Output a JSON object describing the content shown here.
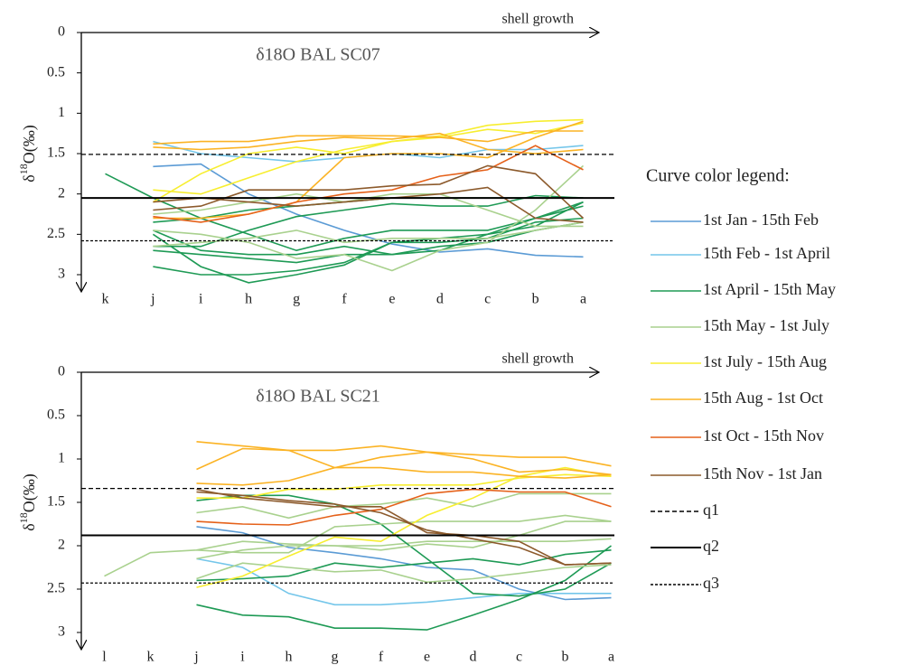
{
  "legend": {
    "title": "Curve color legend:",
    "items": [
      {
        "name": "1st Jan - 15th Feb",
        "color": "#5b9bd5",
        "style": "solid"
      },
      {
        "name": "15th Feb - 1st April",
        "color": "#74c6ea",
        "style": "solid"
      },
      {
        "name": "1st April - 15th May",
        "color": "#1e9a55",
        "style": "solid"
      },
      {
        "name": "15th May - 1st July",
        "color": "#a9d18e",
        "style": "solid"
      },
      {
        "name": "1st July - 15th Aug",
        "color": "#f7ee30",
        "style": "solid"
      },
      {
        "name": "15th Aug - 1st Oct",
        "color": "#fbb324",
        "style": "solid"
      },
      {
        "name": "1st Oct - 15th Nov",
        "color": "#e5611a",
        "style": "solid"
      },
      {
        "name": "15th Nov - 1st Jan",
        "color": "#8c5a2c",
        "style": "solid"
      },
      {
        "name": "q1",
        "color": "#000000",
        "style": "dashed"
      },
      {
        "name": "q2",
        "color": "#000000",
        "style": "solid"
      },
      {
        "name": "q3",
        "color": "#000000",
        "style": "dotted"
      }
    ]
  },
  "chart_data": [
    {
      "type": "line",
      "title": "δ18O BAL SC07",
      "annotation": "shell growth",
      "y_label": {
        "prefix": "δ",
        "sup": "18",
        "suffix": "O(‰)"
      },
      "categories": [
        "k",
        "j",
        "i",
        "h",
        "g",
        "f",
        "e",
        "d",
        "c",
        "b",
        "a"
      ],
      "ylim": [
        0,
        3
      ],
      "yticks": [
        0,
        0.5,
        1,
        1.5,
        2,
        2.5,
        3
      ],
      "y_inverted": true,
      "q_lines": [
        1.51,
        2.05,
        2.58
      ],
      "series": [
        {
          "color": "#5b9bd5",
          "values": [
            null,
            1.66,
            1.63,
            2.0,
            2.25,
            2.45,
            2.62,
            2.72,
            2.68,
            2.76,
            2.78
          ]
        },
        {
          "color": "#74c6ea",
          "values": [
            null,
            1.35,
            1.5,
            1.55,
            1.6,
            1.55,
            1.5,
            1.55,
            1.45,
            1.45,
            1.4
          ]
        },
        {
          "color": "#1e9a55",
          "values": [
            1.75,
            2.05,
            2.3,
            2.5,
            2.7,
            2.55,
            2.45,
            2.45,
            2.45,
            2.3,
            2.1
          ]
        },
        {
          "color": "#1e9a55",
          "values": [
            null,
            2.45,
            2.7,
            2.75,
            2.75,
            2.65,
            2.75,
            2.65,
            2.6,
            2.45,
            2.35
          ]
        },
        {
          "color": "#1e9a55",
          "values": [
            null,
            2.9,
            3.0,
            3.0,
            2.95,
            2.85,
            2.6,
            2.6,
            2.55,
            2.35,
            2.3
          ]
        },
        {
          "color": "#1e9a55",
          "values": [
            null,
            2.5,
            2.9,
            3.1,
            3.0,
            2.88,
            2.6,
            2.55,
            2.5,
            2.4,
            2.1
          ]
        },
        {
          "color": "#1e9a55",
          "values": [
            null,
            2.35,
            2.3,
            2.2,
            2.15,
            2.1,
            2.05,
            2.05,
            2.05,
            2.05,
            2.05
          ]
        },
        {
          "color": "#1e9a55",
          "values": [
            null,
            2.65,
            2.65,
            2.45,
            2.28,
            2.2,
            2.12,
            2.15,
            2.15,
            2.02,
            2.05
          ]
        },
        {
          "color": "#1e9a55",
          "values": [
            null,
            2.7,
            2.75,
            2.8,
            2.85,
            2.75,
            2.75,
            2.7,
            2.5,
            2.3,
            2.15
          ]
        },
        {
          "color": "#a9d18e",
          "values": [
            null,
            2.25,
            2.2,
            2.1,
            2.0,
            2.1,
            2.0,
            2.0,
            2.2,
            2.4,
            2.4
          ]
        },
        {
          "color": "#a9d18e",
          "values": [
            null,
            2.45,
            2.5,
            2.6,
            2.8,
            2.75,
            2.95,
            2.7,
            2.6,
            2.2,
            1.65
          ]
        },
        {
          "color": "#a9d18e",
          "values": [
            null,
            2.65,
            2.6,
            2.55,
            2.45,
            2.6,
            2.55,
            2.55,
            2.55,
            2.45,
            2.35
          ]
        },
        {
          "color": "#f7ee30",
          "values": [
            null,
            1.95,
            2.0,
            1.8,
            1.6,
            1.45,
            1.35,
            1.28,
            1.15,
            1.1,
            1.08
          ]
        },
        {
          "color": "#f7ee30",
          "values": [
            null,
            2.1,
            1.75,
            1.5,
            1.42,
            1.5,
            1.35,
            1.3,
            1.2,
            1.25,
            1.12
          ]
        },
        {
          "color": "#fbb324",
          "values": [
            null,
            1.38,
            1.35,
            1.35,
            1.28,
            1.28,
            1.28,
            1.3,
            1.35,
            1.22,
            1.22
          ]
        },
        {
          "color": "#fbb324",
          "values": [
            null,
            1.42,
            1.45,
            1.42,
            1.35,
            1.3,
            1.32,
            1.25,
            1.45,
            1.5,
            1.45
          ]
        },
        {
          "color": "#fbb324",
          "values": [
            null,
            2.3,
            2.3,
            2.25,
            2.1,
            1.55,
            1.5,
            1.5,
            1.55,
            1.3,
            1.1
          ]
        },
        {
          "color": "#e5611a",
          "values": [
            null,
            2.28,
            2.35,
            2.25,
            2.1,
            2.0,
            1.95,
            1.78,
            1.7,
            1.4,
            1.7
          ]
        },
        {
          "color": "#8c5a2c",
          "values": [
            null,
            2.2,
            2.15,
            1.95,
            1.95,
            1.95,
            1.9,
            1.88,
            1.65,
            1.75,
            2.3
          ]
        },
        {
          "color": "#8c5a2c",
          "values": [
            null,
            2.1,
            2.05,
            2.1,
            2.15,
            2.1,
            2.05,
            2.0,
            1.92,
            2.3,
            2.35
          ]
        }
      ]
    },
    {
      "type": "line",
      "title": "δ18O BAL SC21",
      "annotation": "shell growth",
      "y_label": {
        "prefix": "δ",
        "sup": "18",
        "suffix": "O(‰)"
      },
      "categories": [
        "l",
        "k",
        "j",
        "i",
        "h",
        "g",
        "f",
        "e",
        "d",
        "c",
        "b",
        "a"
      ],
      "ylim": [
        0,
        3
      ],
      "yticks": [
        0,
        0.5,
        1,
        1.5,
        2,
        2.5,
        3
      ],
      "y_inverted": true,
      "q_lines": [
        1.34,
        1.88,
        2.43
      ],
      "series": [
        {
          "color": "#a9d18e",
          "values": [
            2.35,
            2.08,
            2.05,
            1.95,
            1.98,
            2.0,
            2.0,
            1.95,
            1.95,
            1.95,
            1.95,
            1.92
          ]
        },
        {
          "color": "#5b9bd5",
          "values": [
            null,
            null,
            1.78,
            1.85,
            2.02,
            2.08,
            2.15,
            2.25,
            2.28,
            2.5,
            2.62,
            2.6
          ]
        },
        {
          "color": "#74c6ea",
          "values": [
            null,
            null,
            2.15,
            2.25,
            2.55,
            2.68,
            2.68,
            2.65,
            2.6,
            2.55,
            2.55,
            2.55
          ]
        },
        {
          "color": "#1e9a55",
          "values": [
            null,
            null,
            2.68,
            2.8,
            2.82,
            2.95,
            2.95,
            2.97,
            2.8,
            2.62,
            2.4,
            2.0
          ]
        },
        {
          "color": "#1e9a55",
          "values": [
            null,
            null,
            2.4,
            2.38,
            2.35,
            2.2,
            2.25,
            2.2,
            2.15,
            2.22,
            2.1,
            2.05
          ]
        },
        {
          "color": "#1e9a55",
          "values": [
            null,
            null,
            1.48,
            1.42,
            1.42,
            1.52,
            1.75,
            2.15,
            2.55,
            2.58,
            2.5,
            2.2
          ]
        },
        {
          "color": "#a9d18e",
          "values": [
            null,
            null,
            1.62,
            1.55,
            1.68,
            1.55,
            1.52,
            1.45,
            1.55,
            1.4,
            1.4,
            1.4
          ]
        },
        {
          "color": "#a9d18e",
          "values": [
            null,
            null,
            2.38,
            2.2,
            2.25,
            2.3,
            2.28,
            2.42,
            2.38,
            2.32,
            2.25,
            2.22
          ]
        },
        {
          "color": "#a9d18e",
          "values": [
            null,
            null,
            2.05,
            2.08,
            2.08,
            1.78,
            1.75,
            1.72,
            1.72,
            1.72,
            1.65,
            1.72
          ]
        },
        {
          "color": "#a9d18e",
          "values": [
            null,
            null,
            2.15,
            2.05,
            2.0,
            2.0,
            2.05,
            1.98,
            2.02,
            1.88,
            1.72,
            1.72
          ]
        },
        {
          "color": "#f7ee30",
          "values": [
            null,
            null,
            2.48,
            2.35,
            2.12,
            1.9,
            1.95,
            1.65,
            1.45,
            1.2,
            1.1,
            1.2
          ]
        },
        {
          "color": "#f7ee30",
          "values": [
            null,
            null,
            1.45,
            1.45,
            1.35,
            1.35,
            1.3,
            1.3,
            1.3,
            1.22,
            1.18,
            1.2
          ]
        },
        {
          "color": "#fbb324",
          "values": [
            null,
            null,
            0.8,
            0.85,
            0.9,
            0.9,
            0.85,
            0.92,
            0.95,
            0.98,
            0.98,
            1.08
          ]
        },
        {
          "color": "#fbb324",
          "values": [
            null,
            null,
            1.12,
            0.88,
            0.9,
            1.1,
            0.98,
            0.92,
            1.0,
            1.15,
            1.12,
            1.18
          ]
        },
        {
          "color": "#fbb324",
          "values": [
            null,
            null,
            1.28,
            1.3,
            1.25,
            1.1,
            1.1,
            1.15,
            1.15,
            1.2,
            1.22,
            1.18
          ]
        },
        {
          "color": "#e5611a",
          "values": [
            null,
            null,
            1.72,
            1.75,
            1.76,
            1.65,
            1.58,
            1.4,
            1.35,
            1.38,
            1.38,
            1.55
          ]
        },
        {
          "color": "#8c5a2c",
          "values": [
            null,
            null,
            1.38,
            1.42,
            1.48,
            1.52,
            1.62,
            1.82,
            1.92,
            2.02,
            2.22,
            2.2
          ]
        },
        {
          "color": "#8c5a2c",
          "values": [
            null,
            null,
            1.35,
            1.45,
            1.5,
            1.55,
            1.55,
            1.85,
            1.88,
            1.95,
            2.22,
            2.2
          ]
        }
      ]
    }
  ]
}
